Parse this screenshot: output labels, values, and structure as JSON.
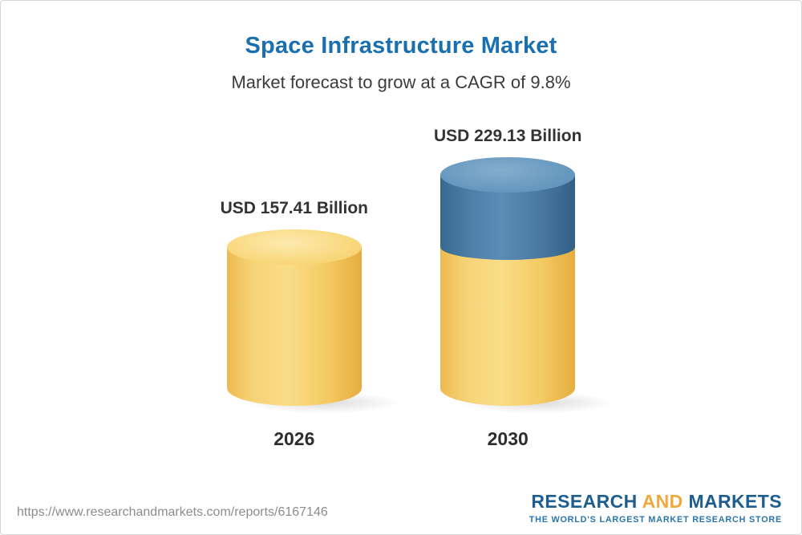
{
  "header": {
    "title": "Space Infrastructure Market",
    "subtitle": "Market forecast to grow at a CAGR of 9.8%"
  },
  "chart_data": {
    "type": "bar",
    "subtype": "3d-cylinder",
    "title": "Space Infrastructure Market",
    "subtitle": "Market forecast to grow at a CAGR of 9.8%",
    "unit": "USD Billion",
    "cagr_percent": 9.8,
    "categories": [
      "2026",
      "2030"
    ],
    "values": [
      157.41,
      229.13
    ],
    "value_labels": [
      "USD 157.41 Billion",
      "USD 229.13 Billion"
    ],
    "legend": "none",
    "grid": false,
    "colors": {
      "base_segment": "#F5C75E",
      "growth_segment": "#4A7CA5"
    },
    "notes": "2030 cylinder shows the 2026 base value in yellow with the growth delta segment in blue stacked on top"
  },
  "footer": {
    "url": "https://www.researchandmarkets.com/reports/6167146",
    "logo": {
      "word1": "RESEARCH",
      "word2": "AND",
      "word3": "MARKETS",
      "tagline": "THE WORLD'S LARGEST MARKET RESEARCH STORE",
      "brand_blue": "#1D5E90",
      "brand_gold": "#F0A73C"
    }
  },
  "colors": {
    "title_blue": "#1A6FAE",
    "text_dark": "#333333",
    "url_gray": "#8C8C8C"
  }
}
